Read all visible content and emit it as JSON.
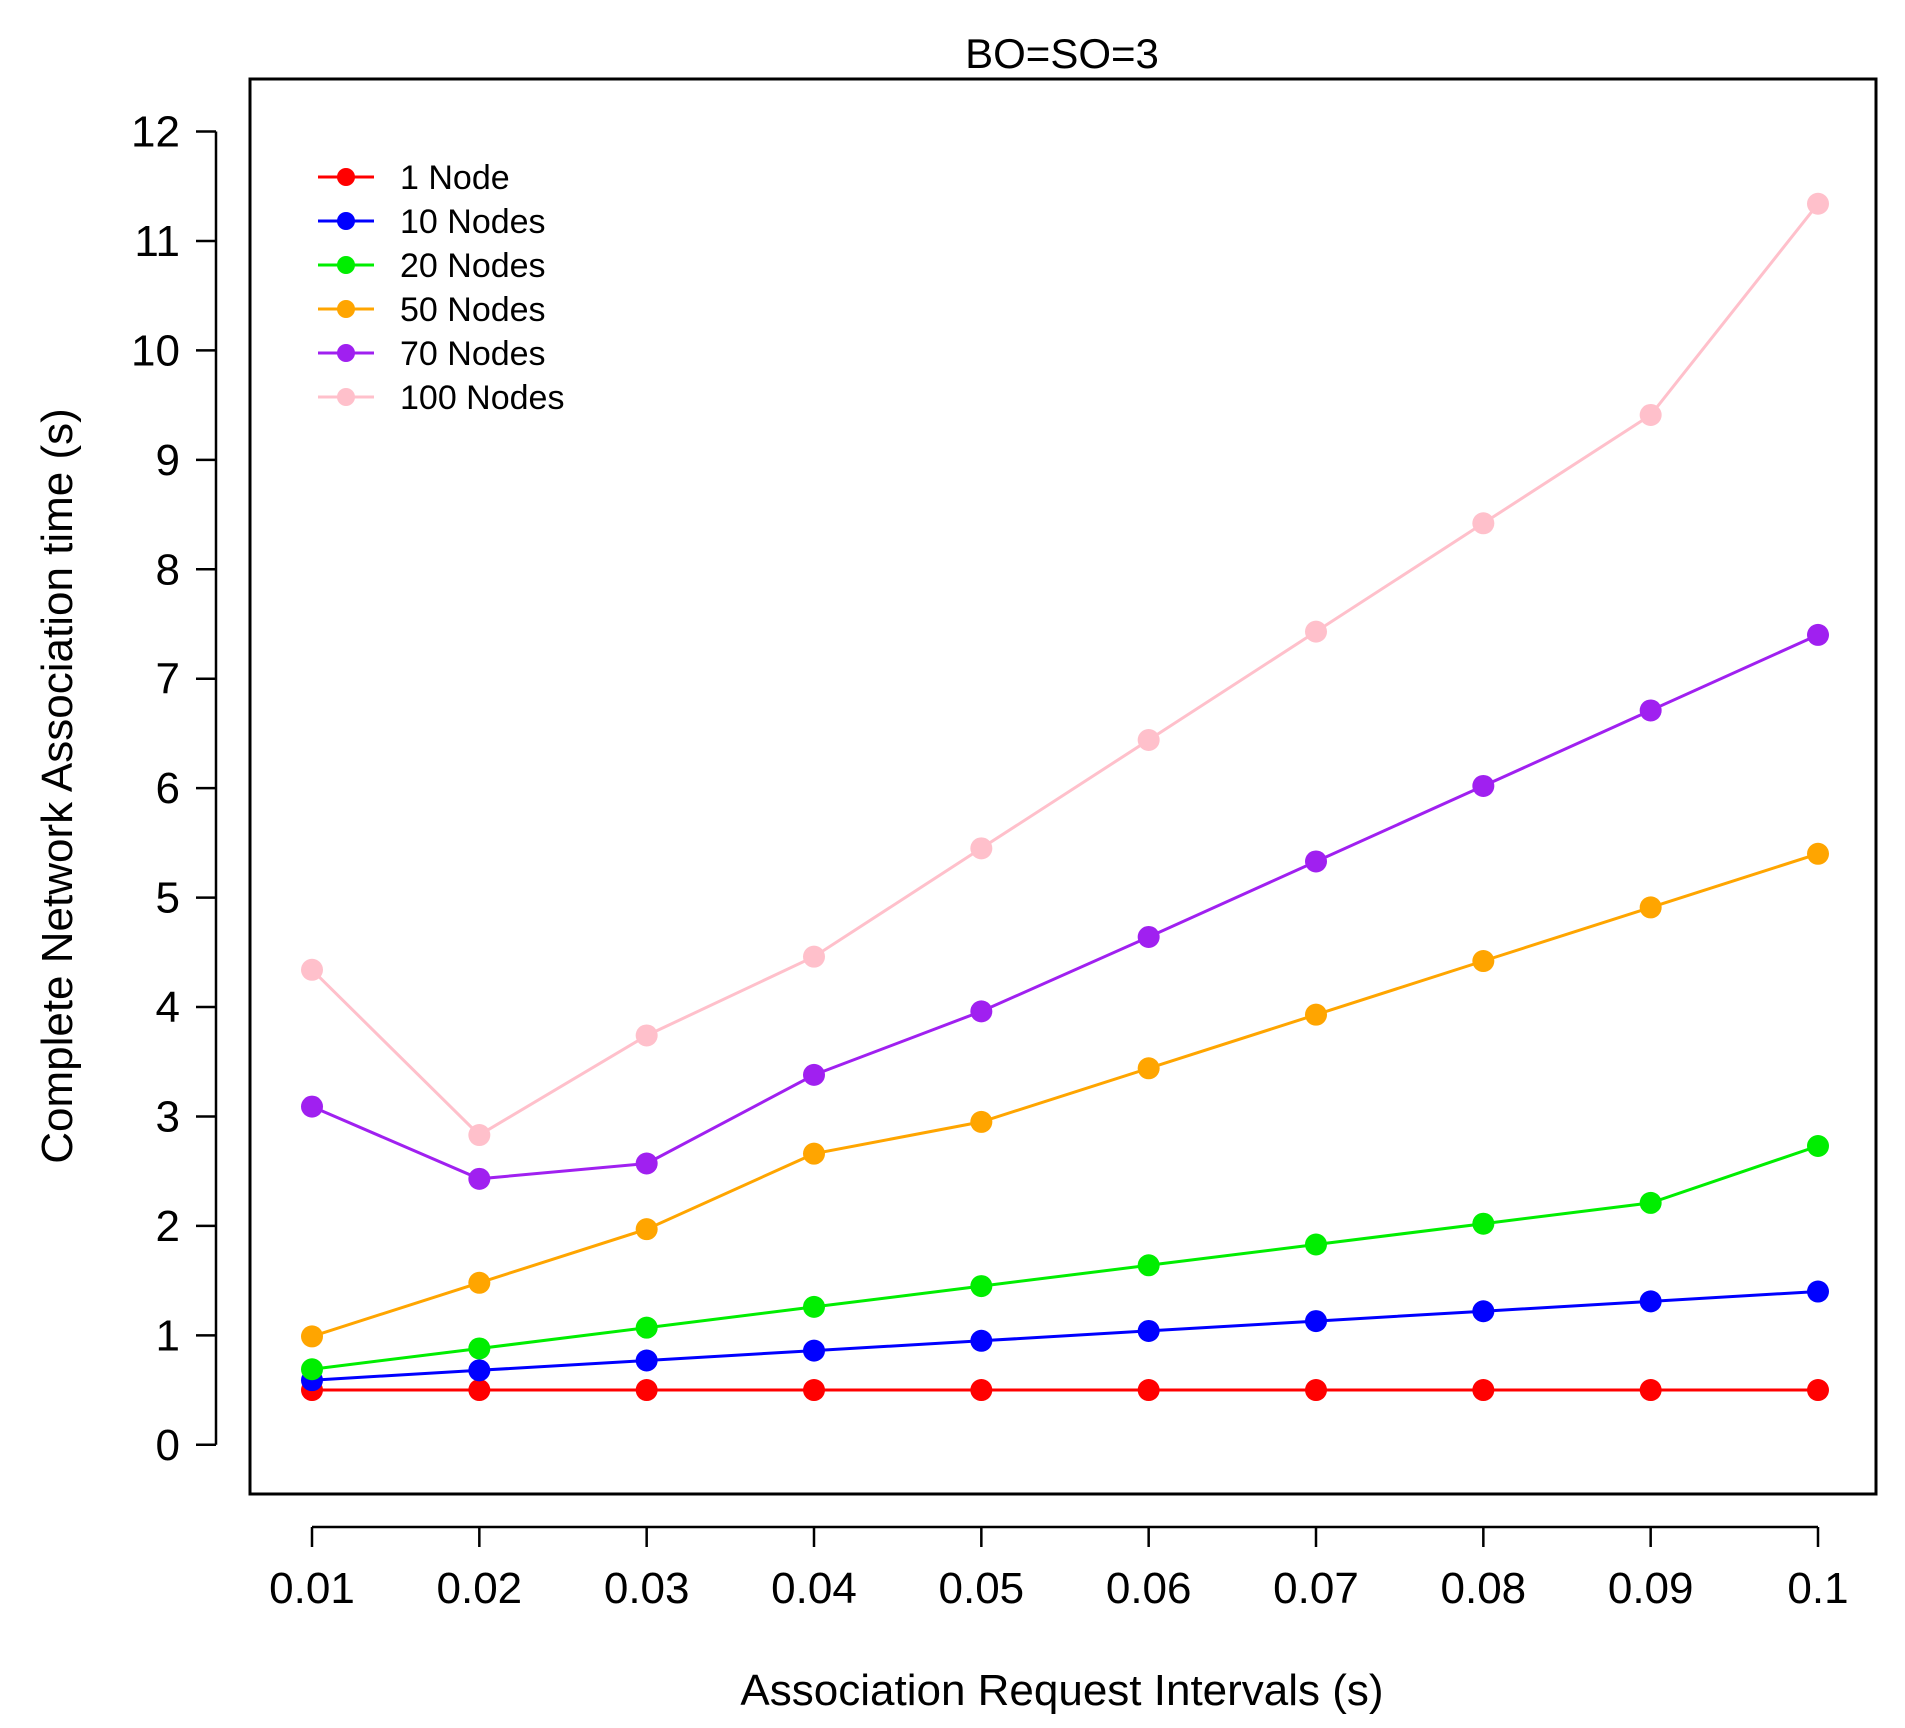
{
  "chart_data": {
    "type": "line",
    "title": "BO=SO=3",
    "xlabel": "Association Request Intervals (s)",
    "ylabel": "Complete Network Association time (s)",
    "categories": [
      "0.01",
      "0.02",
      "0.03",
      "0.04",
      "0.05",
      "0.06",
      "0.07",
      "0.08",
      "0.09",
      "0.1"
    ],
    "yticks": [
      "0",
      "1",
      "2",
      "3",
      "4",
      "5",
      "6",
      "7",
      "8",
      "9",
      "10",
      "11",
      "12"
    ],
    "ylim": [
      -0.45,
      12.48
    ],
    "grid": false,
    "legend_position": "top-left",
    "series": [
      {
        "name": "1 Node",
        "color": "#ff0000",
        "values": [
          0.5,
          0.5,
          0.5,
          0.5,
          0.5,
          0.5,
          0.5,
          0.5,
          0.5,
          0.5
        ]
      },
      {
        "name": "10 Nodes",
        "color": "#0000ff",
        "values": [
          0.59,
          0.68,
          0.77,
          0.86,
          0.95,
          1.04,
          1.13,
          1.22,
          1.31,
          1.4
        ]
      },
      {
        "name": "20 Nodes",
        "color": "#00ee00",
        "values": [
          0.69,
          0.88,
          1.07,
          1.26,
          1.45,
          1.64,
          1.83,
          2.02,
          2.21,
          2.73
        ]
      },
      {
        "name": "50 Nodes",
        "color": "#ffa500",
        "values": [
          0.99,
          1.48,
          1.97,
          2.66,
          2.95,
          3.44,
          3.93,
          4.42,
          4.91,
          5.4
        ]
      },
      {
        "name": "70 Nodes",
        "color": "#a020f0",
        "values": [
          3.09,
          2.43,
          2.57,
          3.38,
          3.96,
          4.64,
          5.33,
          6.02,
          6.71,
          7.4
        ]
      },
      {
        "name": "100 Nodes",
        "color": "#ffc0cb",
        "values": [
          4.34,
          2.83,
          3.74,
          4.46,
          5.45,
          6.44,
          7.43,
          8.42,
          9.41,
          11.34
        ]
      }
    ]
  }
}
